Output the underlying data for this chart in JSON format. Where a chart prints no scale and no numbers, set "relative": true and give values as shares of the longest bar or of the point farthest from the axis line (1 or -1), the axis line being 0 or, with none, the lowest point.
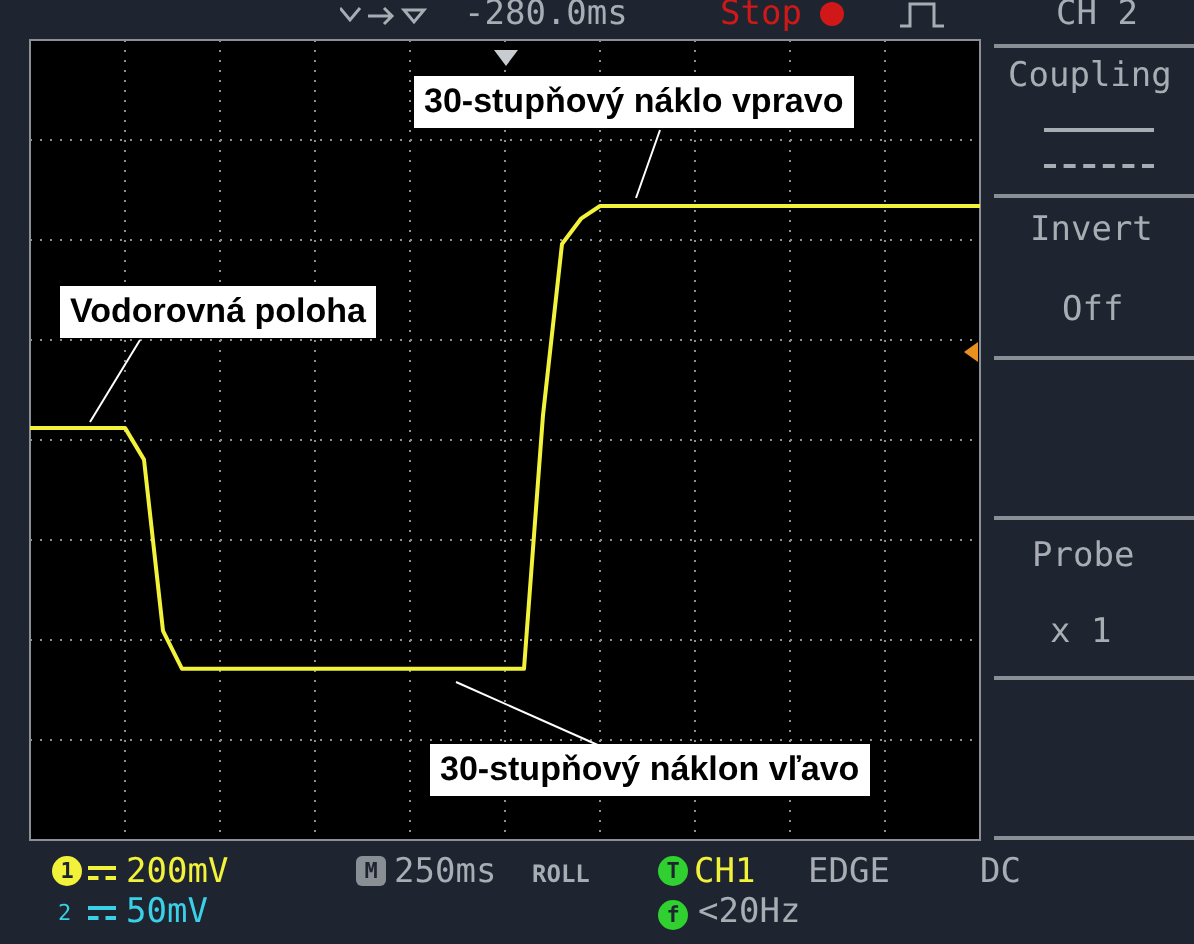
{
  "chart_data": {
    "type": "line",
    "relative": true,
    "grid": true,
    "legend": false,
    "marker": "none",
    "line_style": "solid",
    "categories": [
      null,
      null,
      null,
      null,
      null,
      null,
      null,
      null,
      null,
      null,
      null,
      null,
      null,
      null,
      null,
      null,
      null,
      null,
      null,
      null,
      null,
      null,
      null,
      null,
      null,
      null,
      null,
      null,
      null,
      null,
      null,
      null,
      null,
      null,
      null,
      null,
      null,
      null,
      null,
      null,
      null,
      null,
      null,
      null,
      null,
      null,
      null,
      null,
      null,
      null,
      null
    ],
    "series": [
      {
        "color": "#f2f23a",
        "values": [
          0.65,
          0.65,
          0.65,
          0.65,
          0.65,
          0.65,
          0.6,
          0.33,
          0.27,
          0.27,
          0.27,
          0.27,
          0.27,
          0.27,
          0.27,
          0.27,
          0.27,
          0.27,
          0.27,
          0.27,
          0.27,
          0.27,
          0.27,
          0.27,
          0.27,
          0.27,
          0.27,
          0.67,
          0.94,
          0.98,
          1,
          1,
          1,
          1,
          1,
          1,
          1,
          1,
          1,
          1,
          1,
          1,
          1,
          1,
          1,
          1,
          1,
          1,
          1,
          1,
          1
        ]
      }
    ],
    "annotations": [
      "Vodorovná poloha",
      "30-stupňový náklo vpravo",
      "30-stupňový náklon vľavo",
      "-280.0ms",
      "Stop",
      "CH 2",
      "Coupling",
      "Invert",
      "Off",
      "Probe",
      "x 1",
      "1",
      "200mV",
      "2",
      "50mV",
      "M",
      "250ms",
      "ROLL",
      "T",
      "CH1",
      "EDGE",
      "DC",
      "f",
      "<20Hz"
    ]
  }
}
